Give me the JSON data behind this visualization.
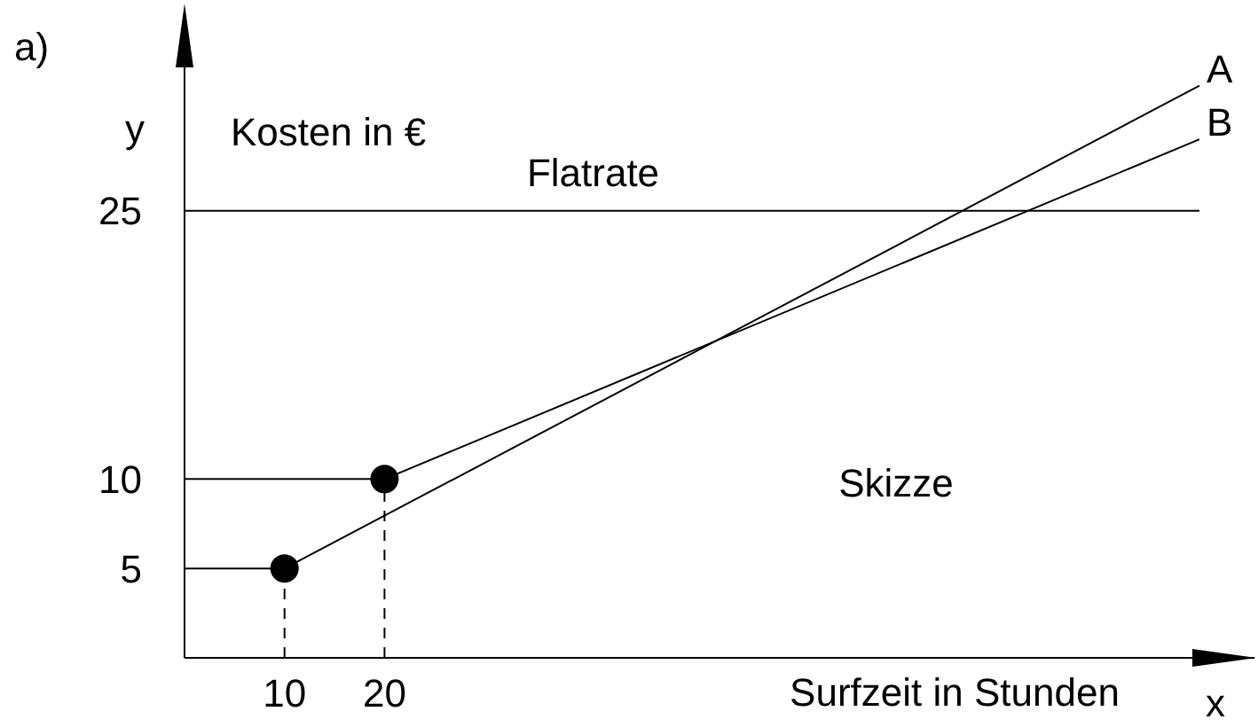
{
  "chart_data": {
    "type": "line",
    "xlabel": "x",
    "ylabel": "y",
    "xlim": [
      0,
      107
    ],
    "ylim": [
      0,
      36
    ],
    "xticks": [
      10,
      20
    ],
    "yticks": [
      5,
      10,
      25
    ],
    "annotations": [
      "a)",
      "Kosten in €",
      "Surfzeit in Stunden",
      "Skizze"
    ],
    "series": [
      {
        "name": "A",
        "color": "#000000",
        "x": [
          0,
          10,
          101.5
        ],
        "values": [
          5,
          5,
          32
        ],
        "marker": "none",
        "line_style": "solid"
      },
      {
        "name": "B",
        "color": "#000000",
        "x": [
          0,
          20,
          101.5
        ],
        "values": [
          10,
          10,
          29
        ],
        "marker": "none",
        "line_style": "solid"
      },
      {
        "name": "Flatrate",
        "color": "#000000",
        "x": [
          0,
          101.5
        ],
        "values": [
          25,
          25
        ],
        "marker": "none",
        "line_style": "solid"
      },
      {
        "type": "line",
        "color": "#000000",
        "x": [
          10,
          10
        ],
        "values": [
          0,
          5
        ],
        "marker": "none",
        "line_style": "dashed"
      },
      {
        "type": "line",
        "color": "#000000",
        "x": [
          20,
          20
        ],
        "values": [
          0,
          10
        ],
        "marker": "none",
        "line_style": "dashed"
      },
      {
        "type": "scatter",
        "color": "#000000",
        "x": [
          10,
          20
        ],
        "values": [
          5,
          10
        ],
        "marker": "circle"
      }
    ]
  }
}
